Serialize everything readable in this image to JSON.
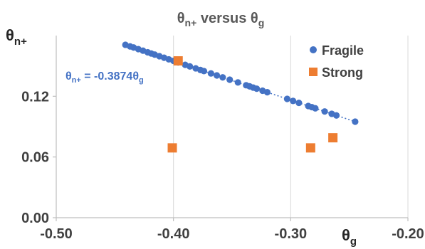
{
  "chart_data": {
    "type": "scatter",
    "title": "θn+ versus θg",
    "title_parts": {
      "a": "θ",
      "a_sub": "n+",
      "b": " versus θ",
      "b_sub": "g"
    },
    "xlabel": "θg",
    "xlabel_parts": {
      "main": "θ",
      "sub": "g"
    },
    "ylabel": "θn+",
    "ylabel_parts": {
      "main": "θ",
      "sub": "n+"
    },
    "xlim": [
      -0.5,
      -0.2
    ],
    "ylim": [
      0.0,
      0.18
    ],
    "x_ticks": [
      -0.5,
      -0.4,
      -0.3,
      -0.2
    ],
    "x_tick_labels": [
      "-0.50",
      "-0.40",
      "-0.30",
      "-0.20"
    ],
    "y_ticks": [
      0.0,
      0.06,
      0.12
    ],
    "y_tick_labels": [
      "0.00",
      "0.06",
      "0.12"
    ],
    "grid": {
      "vertical": true,
      "horizontal": false
    },
    "legend_position": "top-right",
    "series": [
      {
        "name": "Fragile",
        "marker": "circle",
        "color": "#4472C4",
        "x": [
          -0.441,
          -0.437,
          -0.434,
          -0.43,
          -0.426,
          -0.422,
          -0.419,
          -0.416,
          -0.412,
          -0.408,
          -0.404,
          -0.4,
          -0.396,
          -0.39,
          -0.386,
          -0.381,
          -0.377,
          -0.374,
          -0.368,
          -0.363,
          -0.358,
          -0.352,
          -0.345,
          -0.338,
          -0.335,
          -0.332,
          -0.329,
          -0.324,
          -0.32,
          -0.303,
          -0.298,
          -0.293,
          -0.285,
          -0.282,
          -0.279,
          -0.271,
          -0.265,
          -0.261,
          -0.245
        ],
        "y": [
          0.1709,
          0.1693,
          0.1682,
          0.1666,
          0.1651,
          0.1635,
          0.1623,
          0.1612,
          0.1596,
          0.1581,
          0.1565,
          0.155,
          0.1534,
          0.1511,
          0.1495,
          0.1476,
          0.146,
          0.1449,
          0.1426,
          0.1406,
          0.1387,
          0.1364,
          0.1337,
          0.1309,
          0.1298,
          0.1286,
          0.1275,
          0.1255,
          0.124,
          0.1174,
          0.1154,
          0.1135,
          0.1104,
          0.1093,
          0.1081,
          0.105,
          0.1027,
          0.1011,
          0.0949
        ]
      },
      {
        "name": "Strong",
        "marker": "square",
        "color": "#ED7D31",
        "x": [
          -0.396,
          -0.401,
          -0.283,
          -0.264
        ],
        "y": [
          0.155,
          0.069,
          0.069,
          0.079
        ]
      }
    ],
    "trendline": {
      "series": "Fragile",
      "equation_parts": {
        "lhs": "θ",
        "lhs_sub": "n+",
        "rhs": " = -0.3874θ",
        "rhs_sub": "g"
      },
      "slope": -0.3874,
      "intercept": 0,
      "x_range": [
        -0.441,
        -0.245
      ],
      "color": "#4472C4",
      "style": "dotted"
    }
  }
}
